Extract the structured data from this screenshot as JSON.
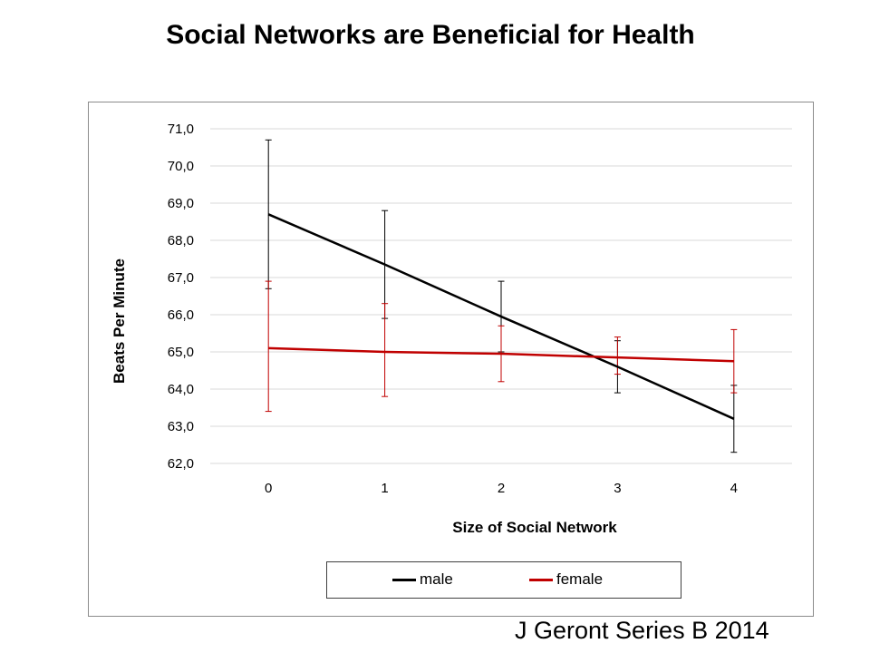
{
  "slide": {
    "title": "Social Networks are Beneficial for Health",
    "source": "J Geront Series B 2014"
  },
  "chart_data": {
    "type": "line",
    "xlabel": "Size of Social Network",
    "ylabel": "Beats Per Minute",
    "categories": [
      "0",
      "1",
      "2",
      "3",
      "4"
    ],
    "x": [
      0,
      1,
      2,
      3,
      4
    ],
    "ylim": [
      62,
      71
    ],
    "yticks": [
      "62,0",
      "63,0",
      "64,0",
      "65,0",
      "66,0",
      "67,0",
      "68,0",
      "69,0",
      "70,0",
      "71,0"
    ],
    "grid": true,
    "legend_position": "bottom",
    "series": [
      {
        "name": "male",
        "color": "#000000",
        "values": [
          68.7,
          67.35,
          65.95,
          64.6,
          63.2
        ],
        "error_low": [
          66.7,
          65.9,
          65.0,
          63.9,
          62.3
        ],
        "error_high": [
          70.7,
          68.8,
          66.9,
          65.3,
          64.1
        ]
      },
      {
        "name": "female",
        "color": "#c00000",
        "values": [
          65.1,
          65.0,
          64.95,
          64.85,
          64.75
        ],
        "error_low": [
          63.4,
          63.8,
          64.2,
          64.4,
          63.9
        ],
        "error_high": [
          66.9,
          66.3,
          65.7,
          65.4,
          65.6
        ]
      }
    ]
  }
}
